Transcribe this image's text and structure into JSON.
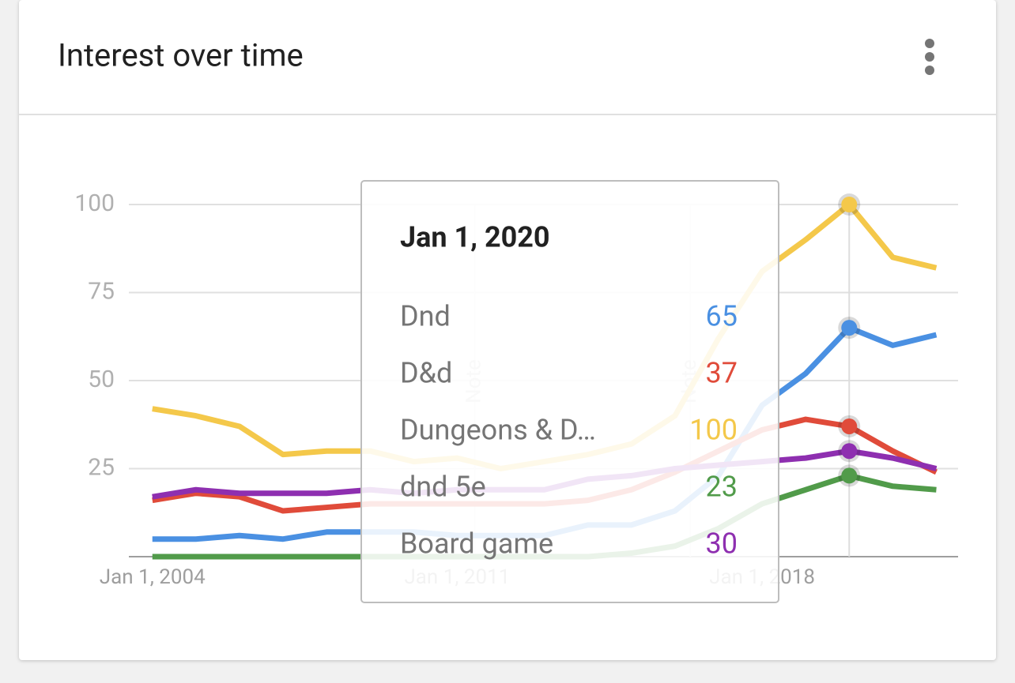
{
  "header": {
    "title": "Interest over time"
  },
  "chart_data": {
    "type": "line",
    "x": [
      2004,
      2005,
      2006,
      2007,
      2008,
      2009,
      2010,
      2011,
      2012,
      2013,
      2014,
      2015,
      2016,
      2017,
      2018,
      2019,
      2020,
      2021,
      2022
    ],
    "xlim": [
      2003.46,
      2022.5
    ],
    "xticks": [
      {
        "value": 2004,
        "label": "Jan 1, 2004"
      },
      {
        "value": 2011,
        "label": "Jan 1, 2011"
      },
      {
        "value": 2018,
        "label": "Jan 1, 2018"
      }
    ],
    "ylim": [
      0,
      100
    ],
    "yticks": [
      25,
      50,
      75,
      100
    ],
    "grid": true,
    "series": [
      {
        "name": "Dnd",
        "color": "#4a90e2",
        "values": [
          5,
          5,
          6,
          5,
          7,
          7,
          7,
          6,
          6,
          6,
          9,
          9,
          13,
          23,
          43,
          52,
          65,
          60,
          63
        ]
      },
      {
        "name": "D&d",
        "color": "#e04b3a",
        "values": [
          16,
          18,
          17,
          13,
          14,
          15,
          15,
          15,
          15,
          15,
          16,
          19,
          24,
          30,
          36,
          39,
          37,
          30,
          24
        ]
      },
      {
        "name": "Dungeons & D…",
        "color": "#f4c84a",
        "values": [
          42,
          40,
          37,
          29,
          30,
          30,
          27,
          28,
          25,
          27,
          29,
          32,
          40,
          62,
          81,
          90,
          100,
          85,
          82
        ]
      },
      {
        "name": "dnd 5e",
        "color": "#519b4a",
        "values": [
          0,
          0,
          0,
          0,
          0,
          0,
          0,
          0,
          0,
          0,
          0,
          1,
          3,
          8,
          15,
          19,
          23,
          20,
          19
        ]
      },
      {
        "name": "Board game",
        "color": "#8e2fb0",
        "values": [
          17,
          19,
          18,
          18,
          18,
          19,
          18,
          19,
          19,
          19,
          22,
          23,
          25,
          26,
          27,
          28,
          30,
          28,
          25
        ]
      }
    ],
    "annotations": [
      {
        "x": 2011.4,
        "text": "Note"
      },
      {
        "x": 2016.35,
        "text": "Note"
      }
    ],
    "tooltip": {
      "title": "Jan 1, 2020",
      "x": 2020
    }
  }
}
